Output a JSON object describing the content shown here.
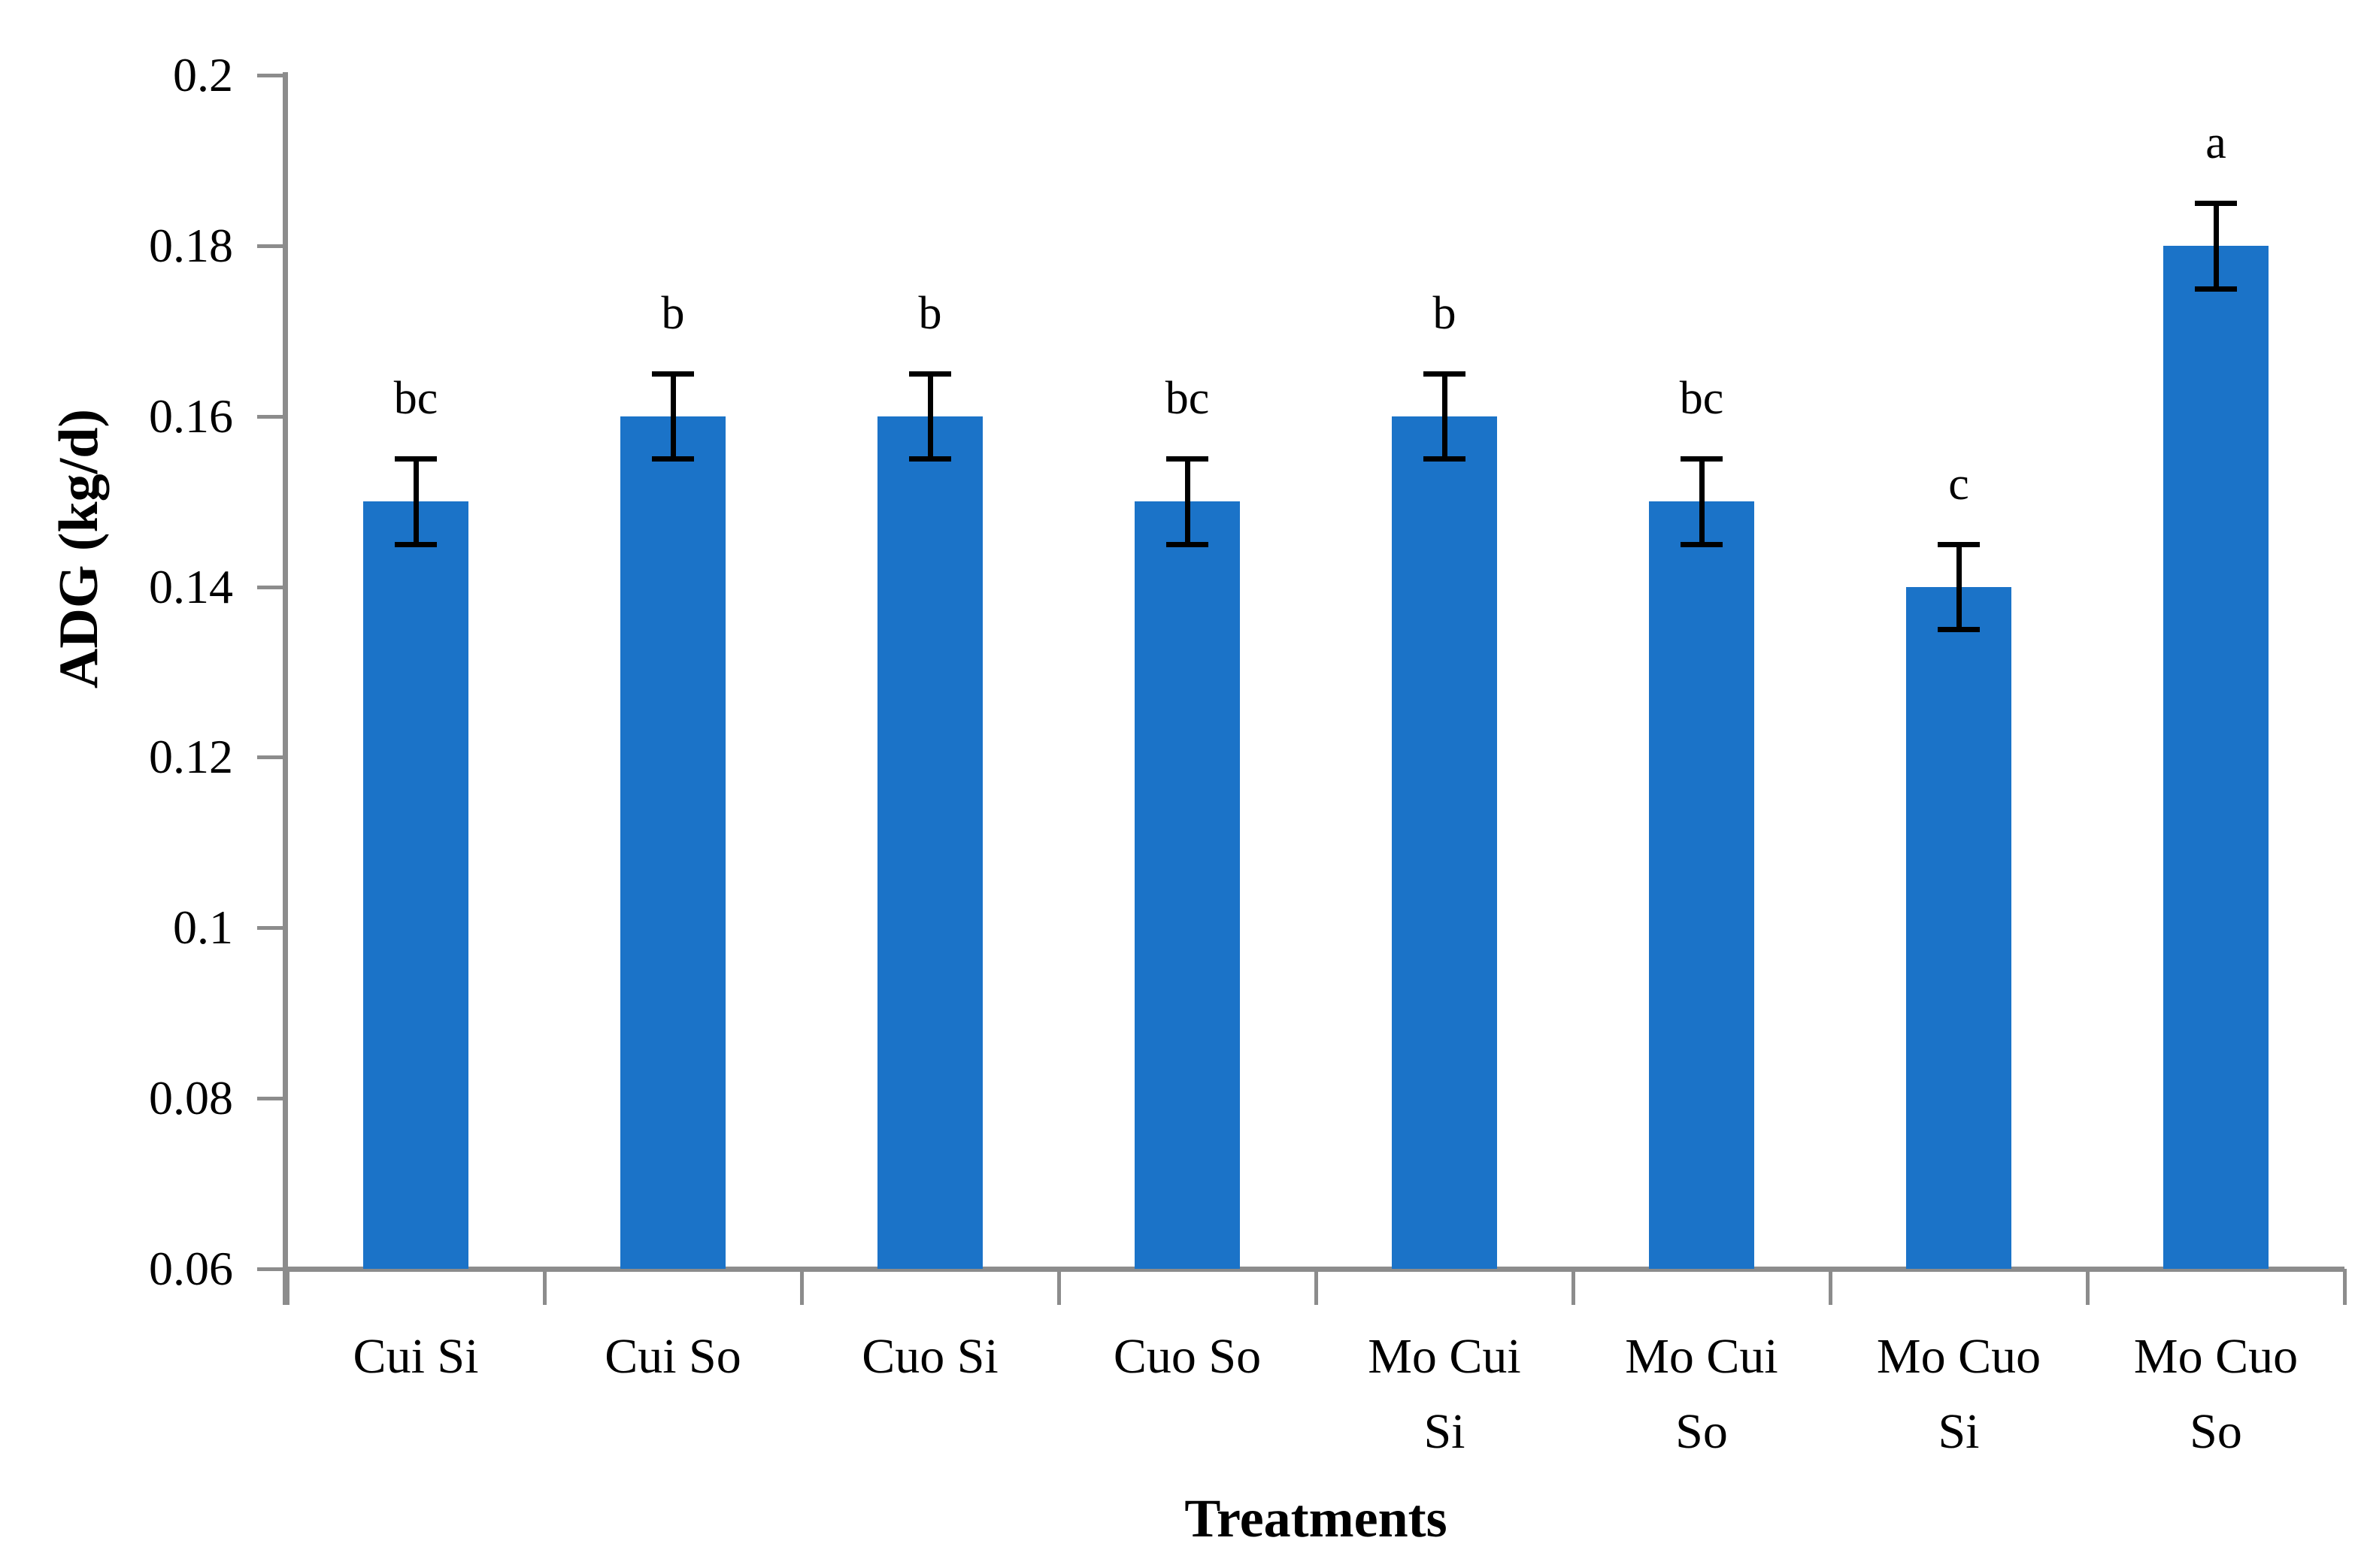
{
  "chart_data": {
    "type": "bar",
    "title": "",
    "xlabel": "Treatments",
    "ylabel": "ADG (kg/d)",
    "categories": [
      "Cui Si",
      "Cui So",
      "Cuo Si",
      "Cuo So",
      "Mo Cui Si",
      "Mo Cui So",
      "Mo Cuo Si",
      "Mo Cuo So"
    ],
    "category_label_lines": [
      [
        "Cui Si"
      ],
      [
        "Cui So"
      ],
      [
        "Cuo Si"
      ],
      [
        "Cuo So"
      ],
      [
        "Mo Cui",
        "Si"
      ],
      [
        "Mo Cui",
        "So"
      ],
      [
        "Mo Cuo",
        "Si"
      ],
      [
        "Mo Cuo",
        "So"
      ]
    ],
    "values": [
      0.15,
      0.16,
      0.16,
      0.15,
      0.16,
      0.15,
      0.14,
      0.18
    ],
    "error_bars": [
      0.005,
      0.005,
      0.005,
      0.005,
      0.005,
      0.005,
      0.005,
      0.005
    ],
    "significance_letters": [
      "bc",
      "b",
      "b",
      "bc",
      "b",
      "bc",
      "c",
      "a"
    ],
    "ylim": [
      0.06,
      0.2
    ],
    "ytick_values": [
      0.2,
      0.18,
      0.16,
      0.14,
      0.12,
      0.1,
      0.08,
      0.06
    ],
    "ytick_labels": [
      "0.2",
      "0.18",
      "0.16",
      "0.14",
      "0.12",
      "0.1",
      "0.08",
      "0.06"
    ],
    "grid": false,
    "legend_position": "none",
    "bar_color": "#1B73C8",
    "axis_color": "#8C8C8C",
    "error_bar_color": "#000000",
    "text_color": "#000000"
  }
}
